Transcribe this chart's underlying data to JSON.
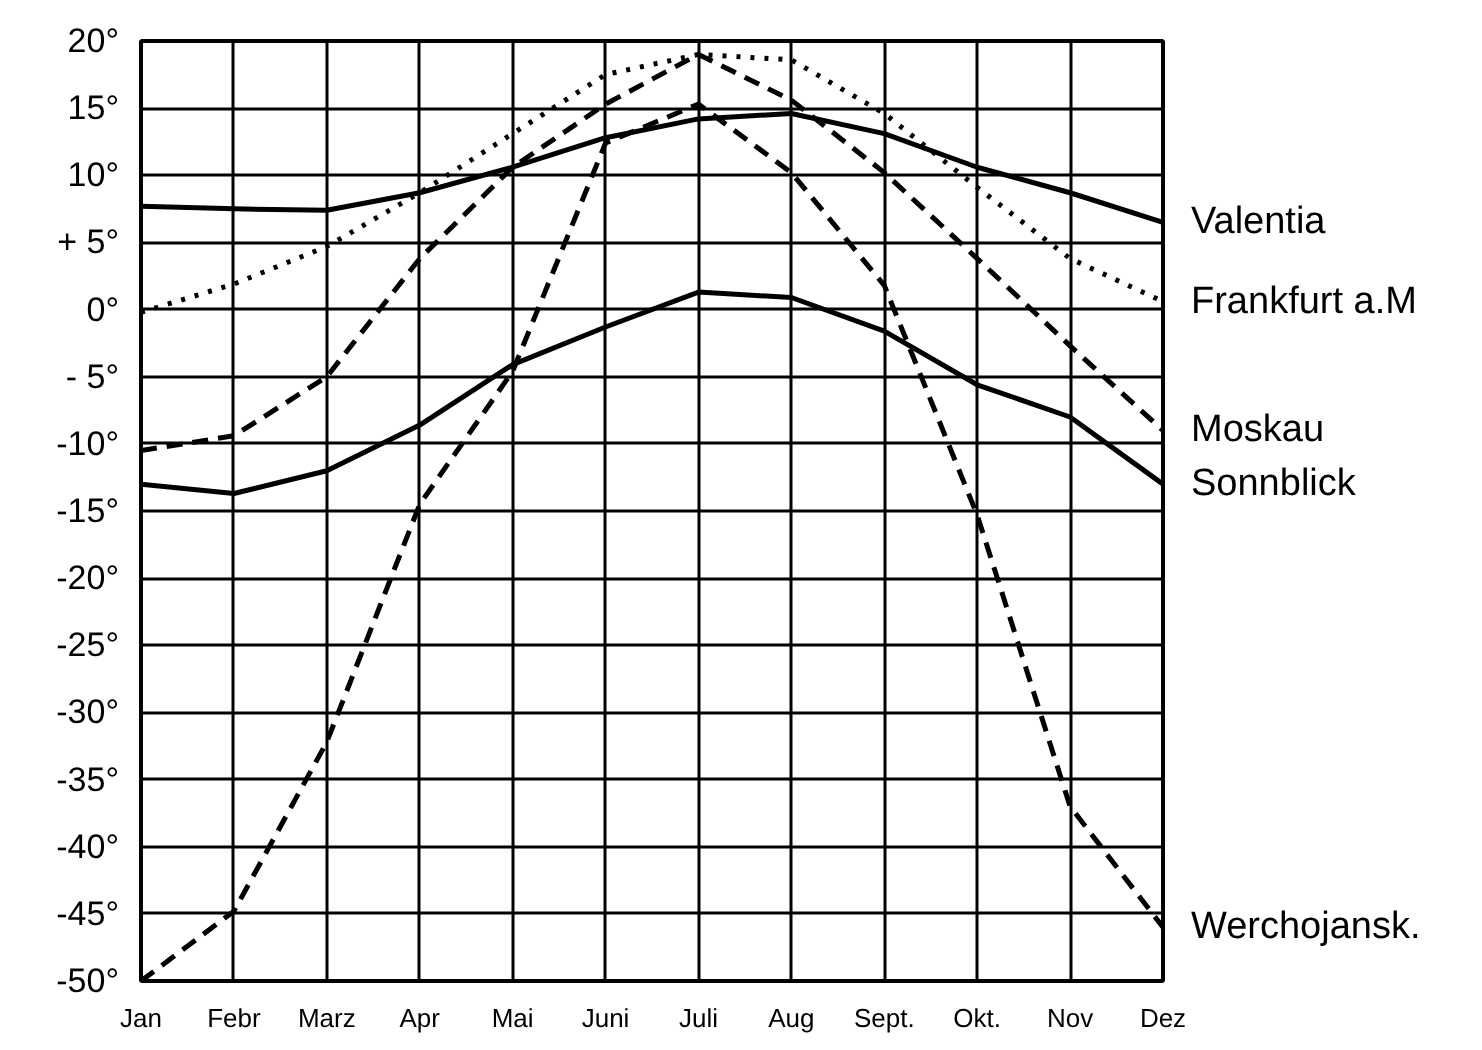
{
  "chart_data": {
    "type": "line",
    "categories": [
      "Jan",
      "Febr",
      "Marz",
      "Apr",
      "Mai",
      "Juni",
      "Juli",
      "Aug",
      "Sept.",
      "Okt.",
      "Nov",
      "Dez"
    ],
    "ylim": [
      -50,
      20
    ],
    "yticks": [
      {
        "value": 20,
        "label": "20°"
      },
      {
        "value": 15,
        "label": "15°"
      },
      {
        "value": 10,
        "label": "10°"
      },
      {
        "value": 5,
        "label": "+ 5°"
      },
      {
        "value": 0,
        "label": "0°"
      },
      {
        "value": -5,
        "label": "- 5°"
      },
      {
        "value": -10,
        "label": "-10°"
      },
      {
        "value": -15,
        "label": "-15°"
      },
      {
        "value": -20,
        "label": "-20°"
      },
      {
        "value": -25,
        "label": "-25°"
      },
      {
        "value": -30,
        "label": "-30°"
      },
      {
        "value": -35,
        "label": "-35°"
      },
      {
        "value": -40,
        "label": "-40°"
      },
      {
        "value": -45,
        "label": "-45°"
      },
      {
        "value": -50,
        "label": "-50°"
      }
    ],
    "grid": true,
    "legend": false,
    "marker": "none",
    "series": [
      {
        "name": "Valentia",
        "color": "#000000",
        "line_style": "solid",
        "values": [
          7.7,
          7.5,
          7.4,
          8.7,
          10.6,
          12.8,
          14.2,
          14.6,
          13.1,
          10.6,
          8.7,
          6.5
        ]
      },
      {
        "name": "Frankfurt a.M",
        "color": "#000000",
        "line_style": "dotted",
        "values": [
          -0.2,
          1.9,
          4.7,
          8.7,
          13.1,
          17.5,
          19,
          18.6,
          14.6,
          9.1,
          3.8,
          0.6
        ]
      },
      {
        "name": "Moskau",
        "color": "#000000",
        "line_style": "dashed",
        "values": [
          -10.5,
          -9.4,
          -5,
          3.8,
          10.6,
          15.3,
          19,
          15.6,
          10.2,
          3.8,
          -2.7,
          -9
        ]
      },
      {
        "name": "Sonnblick",
        "color": "#000000",
        "line_style": "solid",
        "values": [
          -13,
          -13.7,
          -12,
          -8.6,
          -4.1,
          -1.3,
          1.3,
          0.9,
          -1.6,
          -5.6,
          -8,
          -13
        ]
      },
      {
        "name": "Werchojansk.",
        "color": "#000000",
        "line_style": "dashed",
        "values": [
          -50,
          -44.8,
          -32.2,
          -14.5,
          -4.6,
          12.4,
          15.3,
          10.2,
          1.8,
          -15.3,
          -37,
          -46
        ]
      }
    ]
  }
}
